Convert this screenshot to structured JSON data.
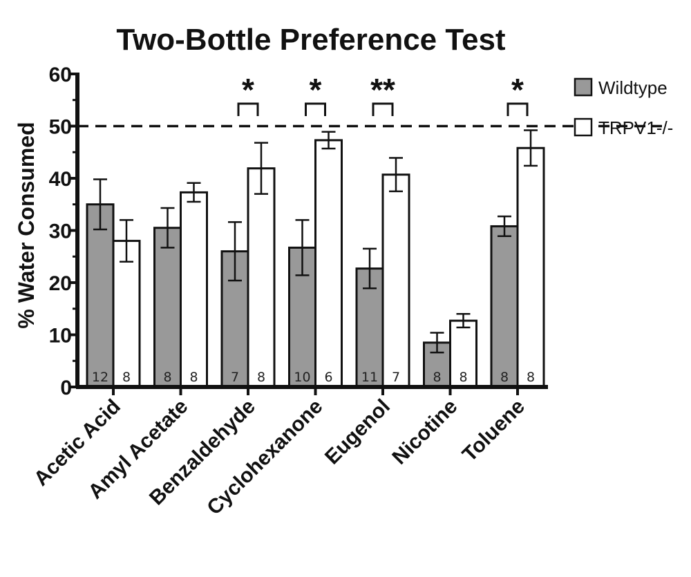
{
  "chart_data": {
    "type": "bar",
    "title": "Two-Bottle Preference Test",
    "xlabel": "",
    "ylabel": "% Water Consumed",
    "ylim": [
      0,
      60
    ],
    "yticks": [
      "0",
      "10",
      "20",
      "30",
      "40",
      "50",
      "60"
    ],
    "reference_line": 50,
    "grid": false,
    "legend_position": "top-right",
    "categories": [
      "Acetic Acid",
      "Amyl Acetate",
      "Benzaldehyde",
      "Cyclohexanone",
      "Eugenol",
      "Nicotine",
      "Toluene"
    ],
    "series": [
      {
        "name": "Wildtype",
        "color": "#999999",
        "values": [
          35,
          30.5,
          26,
          26.7,
          22.7,
          8.5,
          30.8
        ],
        "errors": [
          4.8,
          3.8,
          5.6,
          5.3,
          3.8,
          1.9,
          1.9
        ],
        "n_labels": [
          "12",
          "8",
          "7",
          "10",
          "11",
          "8",
          "8"
        ]
      },
      {
        "name": "TRPV1-/-",
        "color": "#ffffff",
        "values": [
          28,
          37.3,
          41.9,
          47.3,
          40.7,
          12.7,
          45.8
        ],
        "errors": [
          4,
          1.8,
          4.9,
          1.6,
          3.2,
          1.3,
          3.4
        ],
        "n_labels": [
          "8",
          "8",
          "8",
          "6",
          "7",
          "8",
          "8"
        ]
      }
    ],
    "significance": [
      "",
      "",
      "*",
      "*",
      "**",
      "",
      "*"
    ]
  }
}
